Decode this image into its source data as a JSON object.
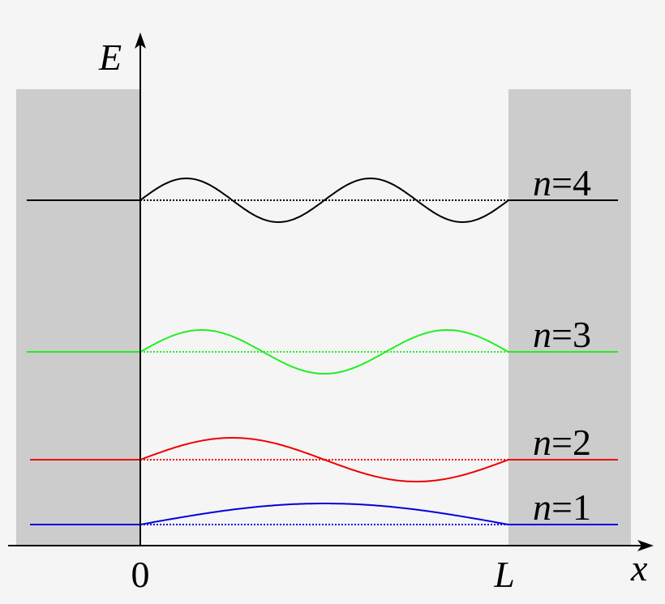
{
  "axes": {
    "y_label": "E",
    "x_label": "x",
    "origin_label": "0",
    "end_label": "L"
  },
  "levels": [
    {
      "symbol": "n",
      "suffix": "=1",
      "color": "#0000dd"
    },
    {
      "symbol": "n",
      "suffix": "=2",
      "color": "#ee0000"
    },
    {
      "symbol": "n",
      "suffix": "=3",
      "color": "#22ee22"
    },
    {
      "symbol": "n",
      "suffix": "=4",
      "color": "#000000"
    }
  ]
}
